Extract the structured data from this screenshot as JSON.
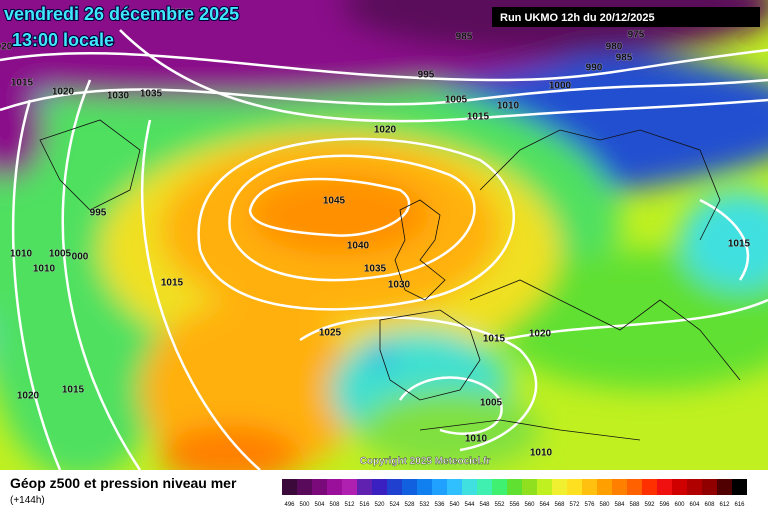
{
  "header": {
    "date": "vendredi 26 décembre 2025",
    "time": "13:00 locale",
    "run": "Run UKMO 12h du 20/12/2025"
  },
  "isobar_labels": [
    "020",
    "1015",
    "1020",
    "1030",
    "1035",
    "1020",
    "985",
    "975",
    "980",
    "985",
    "990",
    "995",
    "1000",
    "1005",
    "1010",
    "1015",
    "1020",
    "1045",
    "995",
    "1040",
    "1010",
    "1005",
    "000",
    "1010",
    "1035",
    "1015",
    "1030",
    "1015",
    "1025",
    "1015",
    "1020",
    "1020",
    "1015",
    "1005",
    "1010",
    "1010"
  ],
  "copyright": "Copyright 2025 Meteociel.fr",
  "legend": {
    "title": "Géop z500 et pression niveau mer",
    "subtitle": "(+144h)",
    "labels": [
      "496",
      "500",
      "504",
      "508",
      "512",
      "516",
      "520",
      "524",
      "528",
      "532",
      "536",
      "540",
      "544",
      "548",
      "552",
      "556",
      "560",
      "564",
      "568",
      "572",
      "576",
      "580",
      "584",
      "588",
      "592",
      "596",
      "600",
      "604",
      "608",
      "612",
      "616"
    ],
    "colors": [
      "#3b0a3b",
      "#5a0a5a",
      "#7a0a7a",
      "#9a109a",
      "#b020b0",
      "#6020b0",
      "#3a20c0",
      "#2040d0",
      "#1060e0",
      "#1080f0",
      "#20a0ff",
      "#30c0ff",
      "#40e0e0",
      "#40f0b0",
      "#40f070",
      "#60e030",
      "#90e020",
      "#c0f020",
      "#f0f030",
      "#ffe020",
      "#ffc010",
      "#ffa000",
      "#ff8000",
      "#ff6000",
      "#ff3000",
      "#f01010",
      "#d00000",
      "#b00000",
      "#900000",
      "#500000",
      "#000000"
    ]
  }
}
